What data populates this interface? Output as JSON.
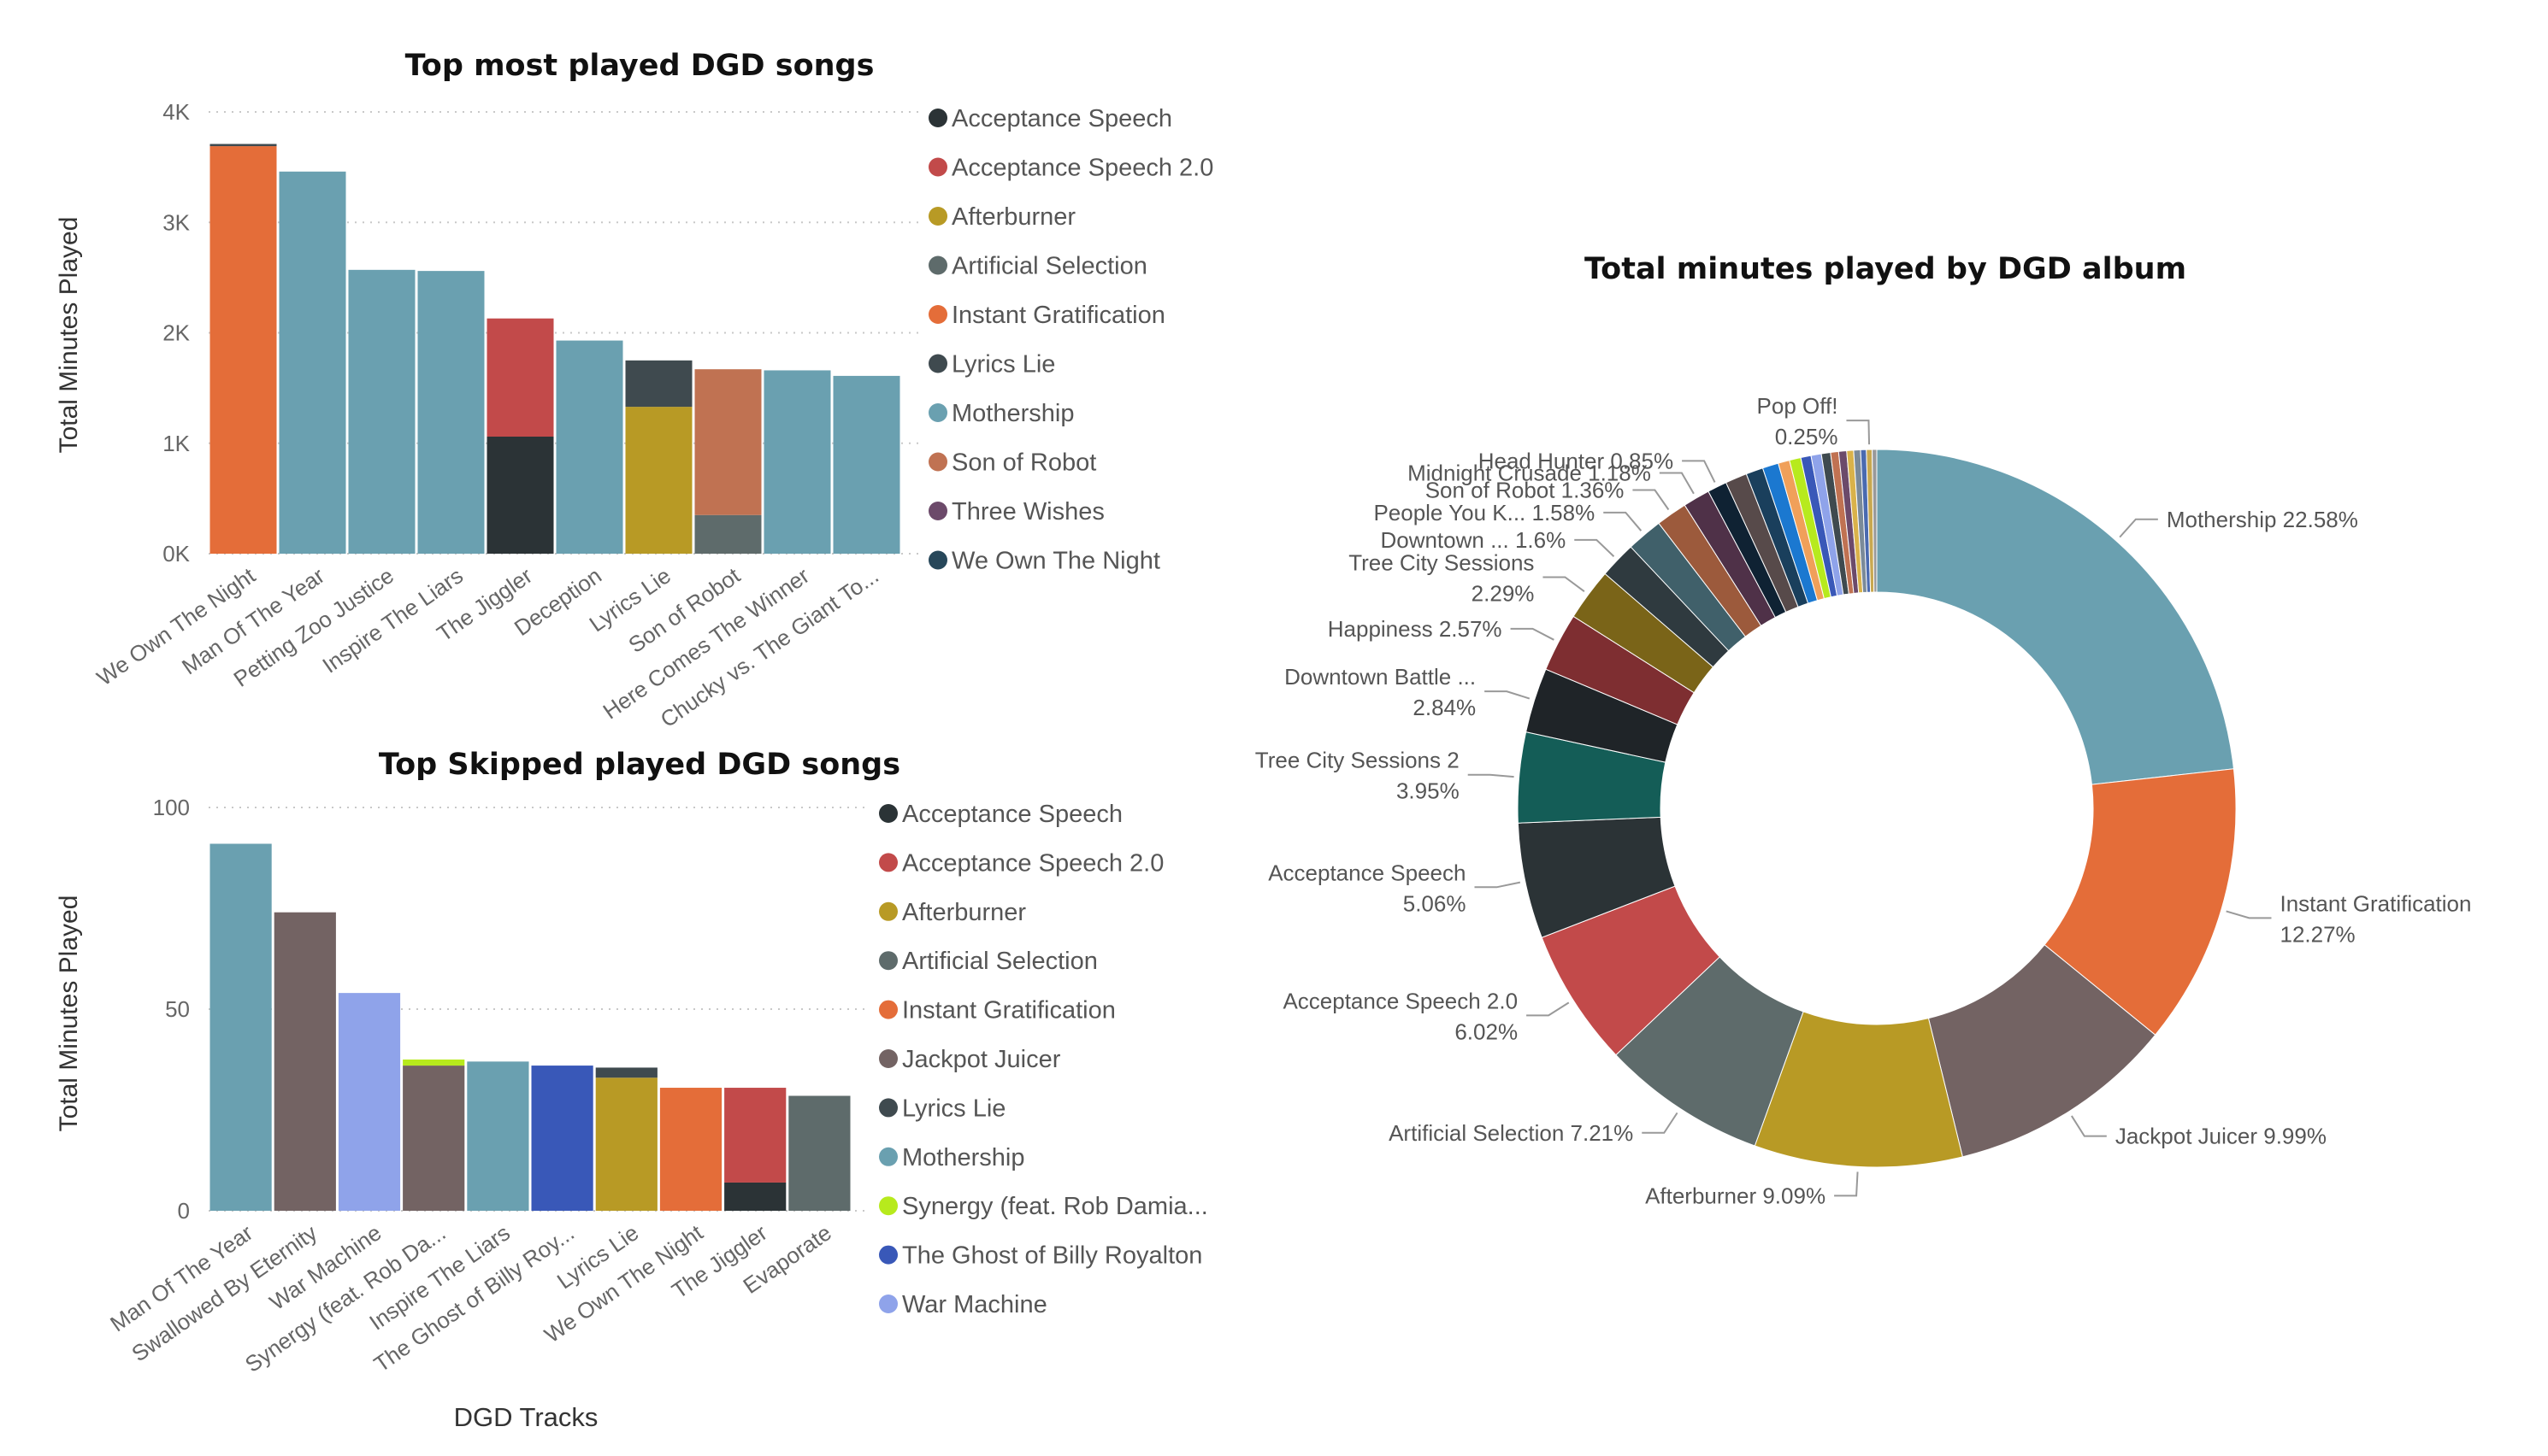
{
  "colors": {
    "Acceptance Speech": "#2b3336",
    "Acceptance Speech 2.0": "#c24a4a",
    "Afterburner": "#b89a25",
    "Artificial Selection": "#5e6b6b",
    "Instant Gratification": "#e46d39",
    "Lyrics Lie": "#3f4a4f",
    "Mothership": "#6aa0b0",
    "Son of Robot": "#c07252",
    "Three Wishes": "#6c4a6a",
    "We Own The Night": "#27475a",
    "Jackpot Juicer": "#736363",
    "Synergy (feat. Rob Damia...": "#b7ea1d",
    "The Ghost of Billy Royalton": "#3958b8",
    "War Machine": "#8fa3ea"
  },
  "chart_data": [
    {
      "type": "bar",
      "title": "Top most played DGD songs",
      "xlabel": "",
      "ylabel": "Total Minutes Played",
      "ylim": [
        0,
        4000
      ],
      "yticks": [
        "0K",
        "1K",
        "2K",
        "3K",
        "4K"
      ],
      "ytick_values": [
        0,
        1000,
        2000,
        3000,
        4000
      ],
      "categories": [
        "We Own The Night",
        "Man Of The Year",
        "Petting Zoo Justice",
        "Inspire The Liars",
        "The Jiggler",
        "Deception",
        "Lyrics Lie",
        "Son of Robot",
        "Here Comes The Winner",
        "Chucky vs. The Giant To..."
      ],
      "stacks": [
        [
          {
            "album": "Instant Gratification",
            "value": 3690
          },
          {
            "album": "Lyrics Lie",
            "value": 20
          }
        ],
        [
          {
            "album": "Mothership",
            "value": 3460
          }
        ],
        [
          {
            "album": "Mothership",
            "value": 2570
          }
        ],
        [
          {
            "album": "Mothership",
            "value": 2560
          }
        ],
        [
          {
            "album": "Acceptance Speech",
            "value": 1060
          },
          {
            "album": "Acceptance Speech 2.0",
            "value": 1070
          }
        ],
        [
          {
            "album": "Mothership",
            "value": 1930
          }
        ],
        [
          {
            "album": "Afterburner",
            "value": 1330
          },
          {
            "album": "Lyrics Lie",
            "value": 420
          }
        ],
        [
          {
            "album": "Artificial Selection",
            "value": 350
          },
          {
            "album": "Son of Robot",
            "value": 1320
          }
        ],
        [
          {
            "album": "Mothership",
            "value": 1660
          }
        ],
        [
          {
            "album": "Mothership",
            "value": 1610
          }
        ]
      ],
      "legend": [
        "Acceptance Speech",
        "Acceptance Speech 2.0",
        "Afterburner",
        "Artificial Selection",
        "Instant Gratification",
        "Lyrics Lie",
        "Mothership",
        "Son of Robot",
        "Three Wishes",
        "We Own The Night"
      ],
      "legend_position": "right",
      "grid": true
    },
    {
      "type": "bar",
      "title": "Top Skipped played DGD songs",
      "xlabel": "DGD Tracks",
      "ylabel": "Total Minutes Played",
      "ylim": [
        0,
        100
      ],
      "yticks": [
        "0",
        "50",
        "100"
      ],
      "ytick_values": [
        0,
        50,
        100
      ],
      "categories": [
        "Man Of The Year",
        "Swallowed By Eternity",
        "War Machine",
        "Synergy (feat. Rob Da...",
        "Inspire The Liars",
        "The Ghost of Billy Roy...",
        "Lyrics Lie",
        "We Own The Night",
        "The Jiggler",
        "Evaporate"
      ],
      "stacks": [
        [
          {
            "album": "Mothership",
            "value": 91
          }
        ],
        [
          {
            "album": "Jackpot Juicer",
            "value": 74
          }
        ],
        [
          {
            "album": "War Machine",
            "value": 54
          }
        ],
        [
          {
            "album": "Jackpot Juicer",
            "value": 36
          },
          {
            "album": "Synergy (feat. Rob Damia...",
            "value": 1.5
          }
        ],
        [
          {
            "album": "Mothership",
            "value": 37
          }
        ],
        [
          {
            "album": "The Ghost of Billy Royalton",
            "value": 36
          }
        ],
        [
          {
            "album": "Afterburner",
            "value": 33
          },
          {
            "album": "Lyrics Lie",
            "value": 2.5
          }
        ],
        [
          {
            "album": "Instant Gratification",
            "value": 30.5
          }
        ],
        [
          {
            "album": "Acceptance Speech",
            "value": 7
          },
          {
            "album": "Acceptance Speech 2.0",
            "value": 23.5
          }
        ],
        [
          {
            "album": "Artificial Selection",
            "value": 28.5
          }
        ]
      ],
      "legend": [
        "Acceptance Speech",
        "Acceptance Speech 2.0",
        "Afterburner",
        "Artificial Selection",
        "Instant Gratification",
        "Jackpot Juicer",
        "Lyrics Lie",
        "Mothership",
        "Synergy (feat. Rob Damia...",
        "The Ghost of Billy Royalton",
        "War Machine"
      ],
      "legend_position": "right",
      "grid": true
    },
    {
      "type": "pie",
      "donut": true,
      "title": "Total minutes played by DGD album",
      "slices": [
        {
          "name": "Mothership",
          "value": 22.58,
          "color": "#6aa0b0",
          "label": "Mothership 22.58%",
          "labeled": true
        },
        {
          "name": "Instant Gratification",
          "value": 12.27,
          "color": "#e46d39",
          "label": "Instant Gratification\n12.27%",
          "labeled": true
        },
        {
          "name": "Jackpot Juicer",
          "value": 9.99,
          "color": "#736363",
          "label": "Jackpot Juicer 9.99%",
          "labeled": true
        },
        {
          "name": "Afterburner",
          "value": 9.09,
          "color": "#b89a25",
          "label": "Afterburner 9.09%",
          "labeled": true
        },
        {
          "name": "Artificial Selection",
          "value": 7.21,
          "color": "#5e6b6b",
          "label": "Artificial Selection 7.21%",
          "labeled": true
        },
        {
          "name": "Acceptance Speech 2.0",
          "value": 6.02,
          "color": "#c24a4a",
          "label": "Acceptance Speech 2.0\n6.02%",
          "labeled": true
        },
        {
          "name": "Acceptance Speech",
          "value": 5.06,
          "color": "#2b3336",
          "label": "Acceptance Speech\n5.06%",
          "labeled": true
        },
        {
          "name": "Tree City Sessions 2",
          "value": 3.95,
          "color": "#145d57",
          "label": "Tree City Sessions 2\n3.95%",
          "labeled": true
        },
        {
          "name": "Downtown Battle ...",
          "value": 2.84,
          "color": "#1f2428",
          "label": "Downtown Battle ...\n2.84%",
          "labeled": true
        },
        {
          "name": "Happiness",
          "value": 2.57,
          "color": "#7e2e31",
          "label": "Happiness 2.57%",
          "labeled": true
        },
        {
          "name": "Tree City Sessions",
          "value": 2.29,
          "color": "#7a6418",
          "label": "Tree City Sessions\n2.29%",
          "labeled": true
        },
        {
          "name": "Downtown ...",
          "value": 1.6,
          "color": "#2f3a3f",
          "label": "Downtown ... 1.6%",
          "labeled": true
        },
        {
          "name": "People You K...",
          "value": 1.58,
          "color": "#40606a",
          "label": "People You K... 1.58%",
          "labeled": true
        },
        {
          "name": "Son of Robot",
          "value": 1.36,
          "color": "#9c5a3c",
          "label": "Son of Robot 1.36%",
          "labeled": true
        },
        {
          "name": "Midnight Crusade",
          "value": 1.18,
          "color": "#4f3148",
          "label": "Midnight Crusade 1.18%",
          "labeled": true
        },
        {
          "name": "Head Hunter",
          "value": 0.85,
          "color": "#0f2233",
          "label": "Head Hunter 0.85%",
          "labeled": true
        },
        {
          "name": "s16",
          "value": 0.95,
          "color": "#574a4a",
          "label": "",
          "labeled": false
        },
        {
          "name": "s17",
          "value": 0.75,
          "color": "#1a3f5c",
          "label": "",
          "labeled": false
        },
        {
          "name": "s18",
          "value": 0.7,
          "color": "#1b78d0",
          "label": "",
          "labeled": false
        },
        {
          "name": "s19",
          "value": 0.5,
          "color": "#f0a05a",
          "label": "",
          "labeled": false
        },
        {
          "name": "s20",
          "value": 0.5,
          "color": "#b7ea1d",
          "label": "",
          "labeled": false
        },
        {
          "name": "s21",
          "value": 0.45,
          "color": "#3958b8",
          "label": "",
          "labeled": false
        },
        {
          "name": "s22",
          "value": 0.45,
          "color": "#8fa3ea",
          "label": "",
          "labeled": false
        },
        {
          "name": "s23",
          "value": 0.4,
          "color": "#3f4a4f",
          "label": "",
          "labeled": false
        },
        {
          "name": "s24",
          "value": 0.35,
          "color": "#c07252",
          "label": "",
          "labeled": false
        },
        {
          "name": "s25",
          "value": 0.35,
          "color": "#6c4a6a",
          "label": "",
          "labeled": false
        },
        {
          "name": "s26",
          "value": 0.3,
          "color": "#d9b24a",
          "label": "",
          "labeled": false
        },
        {
          "name": "s27",
          "value": 0.3,
          "color": "#7a8a99",
          "label": "",
          "labeled": false
        },
        {
          "name": "s28",
          "value": 0.25,
          "color": "#4a6ab0",
          "label": "",
          "labeled": false
        },
        {
          "name": "Pop Off!",
          "value": 0.25,
          "color": "#c8a850",
          "label": "Pop Off!\n0.25%",
          "labeled": true
        },
        {
          "name": "s30",
          "value": 0.2,
          "color": "#999999",
          "label": "",
          "labeled": false
        }
      ]
    }
  ]
}
